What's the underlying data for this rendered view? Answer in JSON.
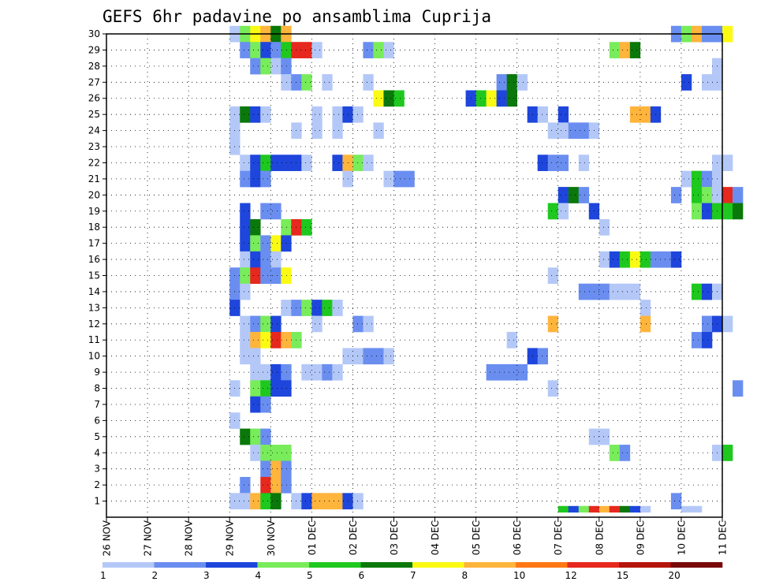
{
  "chart_data": {
    "type": "heatmap",
    "title": "GEFS 6hr padavine po ansamblima Cuprija",
    "xlabel": "",
    "ylabel": "",
    "x_tick_labels": [
      "26 NOV",
      "27 NOV",
      "28 NOV",
      "29 NOV",
      "30 NOV",
      "01 DEC",
      "02 DEC",
      "03 DEC",
      "04 DEC",
      "05 DEC",
      "06 DEC",
      "07 DEC",
      "08 DEC",
      "09 DEC",
      "10 DEC",
      "11 DEC"
    ],
    "x_range_days": [
      0,
      15
    ],
    "y_tick_labels": [
      1,
      2,
      3,
      4,
      5,
      6,
      7,
      8,
      9,
      10,
      11,
      12,
      13,
      14,
      15,
      16,
      17,
      18,
      19,
      20,
      21,
      22,
      23,
      24,
      25,
      26,
      27,
      28,
      29,
      30
    ],
    "y_range": [
      0,
      30
    ],
    "grid": true,
    "colorbar": {
      "placement": "bottom",
      "tick_labels": [
        "1",
        "2",
        "3",
        "4",
        "5",
        "6",
        "7",
        "8",
        "10",
        "12",
        "15",
        "20"
      ],
      "colors": [
        "#b4c8f8",
        "#6a8ef0",
        "#1e46dc",
        "#78ec5a",
        "#1ec81e",
        "#0a780a",
        "#fafa14",
        "#ffb43c",
        "#ff7814",
        "#e6281e",
        "#b4140a",
        "#780a0a"
      ]
    },
    "series_note": "cells: [day_offset_from_26_NOV_00UTC, ensemble_member, precipitation_mm]",
    "cells": [
      [
        3.0,
        30,
        1.5
      ],
      [
        3.25,
        30,
        4.5
      ],
      [
        3.5,
        30,
        7.5
      ],
      [
        3.75,
        30,
        8.5
      ],
      [
        4.0,
        30,
        6.5
      ],
      [
        4.25,
        30,
        8.5
      ],
      [
        13.75,
        30,
        2.5
      ],
      [
        14.0,
        30,
        4.5
      ],
      [
        14.25,
        30,
        8.5
      ],
      [
        14.5,
        30,
        2.5
      ],
      [
        14.75,
        30,
        2.5
      ],
      [
        15.0,
        30,
        7.5
      ],
      [
        3.25,
        29,
        2.5
      ],
      [
        3.5,
        29,
        4.5
      ],
      [
        3.75,
        29,
        3.5
      ],
      [
        4.0,
        29,
        2.5
      ],
      [
        4.25,
        29,
        5.5
      ],
      [
        4.5,
        29,
        13.5
      ],
      [
        4.75,
        29,
        13.5
      ],
      [
        5.0,
        29,
        1.5
      ],
      [
        6.25,
        29,
        2.5
      ],
      [
        6.5,
        29,
        4.5
      ],
      [
        6.75,
        29,
        1.5
      ],
      [
        12.25,
        29,
        4.5
      ],
      [
        12.5,
        29,
        8.5
      ],
      [
        12.75,
        29,
        6.5
      ],
      [
        3.5,
        28,
        2.5
      ],
      [
        3.75,
        28,
        4.5
      ],
      [
        4.0,
        28,
        1.5
      ],
      [
        4.25,
        28,
        2.5
      ],
      [
        14.75,
        28,
        1.5
      ],
      [
        4.25,
        27,
        1.5
      ],
      [
        4.5,
        27,
        2.5
      ],
      [
        4.75,
        27,
        4.5
      ],
      [
        5.25,
        27,
        1.5
      ],
      [
        6.25,
        27,
        1.5
      ],
      [
        9.5,
        27,
        2.5
      ],
      [
        9.75,
        27,
        6.5
      ],
      [
        10.0,
        27,
        1.5
      ],
      [
        14.0,
        27,
        3.5
      ],
      [
        14.5,
        27,
        1.5
      ],
      [
        14.75,
        27,
        1.5
      ],
      [
        6.5,
        26,
        7.5
      ],
      [
        6.75,
        26,
        6.5
      ],
      [
        7.0,
        26,
        5.5
      ],
      [
        8.75,
        26,
        3.5
      ],
      [
        9.0,
        26,
        5.5
      ],
      [
        9.25,
        26,
        7.5
      ],
      [
        9.5,
        26,
        3.5
      ],
      [
        9.75,
        26,
        6.5
      ],
      [
        3.0,
        25,
        1.5
      ],
      [
        3.25,
        25,
        6.5
      ],
      [
        3.5,
        25,
        3.5
      ],
      [
        3.75,
        25,
        1.5
      ],
      [
        5.0,
        25,
        1.5
      ],
      [
        5.5,
        25,
        1.5
      ],
      [
        5.75,
        25,
        3.5
      ],
      [
        6.0,
        25,
        1.5
      ],
      [
        10.25,
        25,
        3.5
      ],
      [
        10.5,
        25,
        1.5
      ],
      [
        11.0,
        25,
        3.5
      ],
      [
        12.75,
        25,
        8.5
      ],
      [
        13.0,
        25,
        8.5
      ],
      [
        13.25,
        25,
        3.5
      ],
      [
        3.0,
        24,
        1.5
      ],
      [
        4.5,
        24,
        1.5
      ],
      [
        5.0,
        24,
        1.5
      ],
      [
        5.5,
        24,
        1.5
      ],
      [
        6.5,
        24,
        1.5
      ],
      [
        10.75,
        24,
        1.5
      ],
      [
        11.0,
        24,
        1.5
      ],
      [
        11.25,
        24,
        2.5
      ],
      [
        11.5,
        24,
        2.5
      ],
      [
        11.75,
        24,
        1.5
      ],
      [
        3.0,
        23,
        1.5
      ],
      [
        3.25,
        22,
        1.5
      ],
      [
        3.5,
        22,
        3.5
      ],
      [
        3.75,
        22,
        5.5
      ],
      [
        4.0,
        22,
        3.5
      ],
      [
        4.25,
        22,
        3.5
      ],
      [
        4.5,
        22,
        3.5
      ],
      [
        4.75,
        22,
        1.5
      ],
      [
        5.5,
        22,
        3.5
      ],
      [
        5.75,
        22,
        8.5
      ],
      [
        6.0,
        22,
        4.5
      ],
      [
        6.25,
        22,
        1.5
      ],
      [
        10.5,
        22,
        3.5
      ],
      [
        10.75,
        22,
        2.5
      ],
      [
        11.0,
        22,
        2.5
      ],
      [
        11.5,
        22,
        1.5
      ],
      [
        14.75,
        22,
        1.5
      ],
      [
        15.0,
        22,
        1.5
      ],
      [
        3.25,
        21,
        2.5
      ],
      [
        3.5,
        21,
        3.5
      ],
      [
        3.75,
        21,
        2.5
      ],
      [
        5.75,
        21,
        1.5
      ],
      [
        6.75,
        21,
        1.5
      ],
      [
        7.0,
        21,
        2.5
      ],
      [
        7.25,
        21,
        2.5
      ],
      [
        14.0,
        21,
        1.5
      ],
      [
        14.25,
        21,
        5.5
      ],
      [
        14.5,
        21,
        2.5
      ],
      [
        14.75,
        21,
        1.5
      ],
      [
        11.0,
        20,
        3.5
      ],
      [
        11.25,
        20,
        6.5
      ],
      [
        11.5,
        20,
        2.5
      ],
      [
        13.75,
        20,
        2.5
      ],
      [
        14.25,
        20,
        5.5
      ],
      [
        14.5,
        20,
        4.5
      ],
      [
        14.75,
        20,
        1.5
      ],
      [
        15.0,
        20,
        13.5
      ],
      [
        15.25,
        20,
        2.5
      ],
      [
        3.25,
        19,
        3.5
      ],
      [
        3.75,
        19,
        2.5
      ],
      [
        4.0,
        19,
        2.5
      ],
      [
        10.75,
        19,
        5.5
      ],
      [
        11.0,
        19,
        1.5
      ],
      [
        11.75,
        19,
        3.5
      ],
      [
        14.25,
        19,
        4.5
      ],
      [
        14.5,
        19,
        3.5
      ],
      [
        14.75,
        19,
        5.5
      ],
      [
        15.0,
        19,
        5.5
      ],
      [
        15.25,
        19,
        6.5
      ],
      [
        3.25,
        18,
        3.5
      ],
      [
        3.5,
        18,
        6.5
      ],
      [
        4.25,
        18,
        4.5
      ],
      [
        4.5,
        18,
        13.5
      ],
      [
        4.75,
        18,
        5.5
      ],
      [
        12.0,
        18,
        1.5
      ],
      [
        3.25,
        17,
        3.5
      ],
      [
        3.5,
        17,
        4.5
      ],
      [
        3.75,
        17,
        2.5
      ],
      [
        4.0,
        17,
        7.5
      ],
      [
        4.25,
        17,
        3.5
      ],
      [
        3.25,
        16,
        1.5
      ],
      [
        3.5,
        16,
        3.5
      ],
      [
        3.75,
        16,
        2.5
      ],
      [
        4.0,
        16,
        1.5
      ],
      [
        12.0,
        16,
        1.5
      ],
      [
        12.25,
        16,
        3.5
      ],
      [
        12.5,
        16,
        5.5
      ],
      [
        12.75,
        16,
        7.5
      ],
      [
        13.0,
        16,
        5.5
      ],
      [
        13.25,
        16,
        2.5
      ],
      [
        13.5,
        16,
        2.5
      ],
      [
        13.75,
        16,
        3.5
      ],
      [
        3.0,
        15,
        2.5
      ],
      [
        3.25,
        15,
        4.5
      ],
      [
        3.5,
        15,
        12.5
      ],
      [
        3.75,
        15,
        2.5
      ],
      [
        4.0,
        15,
        2.5
      ],
      [
        4.25,
        15,
        7.5
      ],
      [
        10.75,
        15,
        1.5
      ],
      [
        3.0,
        14,
        2.5
      ],
      [
        3.25,
        14,
        1.5
      ],
      [
        11.5,
        14,
        2.5
      ],
      [
        11.75,
        14,
        2.5
      ],
      [
        12.0,
        14,
        2.5
      ],
      [
        12.25,
        14,
        1.5
      ],
      [
        12.5,
        14,
        1.5
      ],
      [
        12.75,
        14,
        1.5
      ],
      [
        14.25,
        14,
        5.5
      ],
      [
        14.5,
        14,
        3.5
      ],
      [
        14.75,
        14,
        1.5
      ],
      [
        3.0,
        13,
        3.5
      ],
      [
        4.25,
        13,
        1.5
      ],
      [
        4.5,
        13,
        2.5
      ],
      [
        4.75,
        13,
        4.5
      ],
      [
        5.0,
        13,
        3.5
      ],
      [
        5.25,
        13,
        5.5
      ],
      [
        5.5,
        13,
        1.5
      ],
      [
        13.0,
        13,
        1.5
      ],
      [
        3.25,
        12,
        1.5
      ],
      [
        3.5,
        12,
        2.5
      ],
      [
        3.75,
        12,
        4.5
      ],
      [
        4.0,
        12,
        3.5
      ],
      [
        5.0,
        12,
        1.5
      ],
      [
        6.0,
        12,
        2.5
      ],
      [
        6.25,
        12,
        1.5
      ],
      [
        10.75,
        12,
        8.5
      ],
      [
        13.0,
        12,
        8.5
      ],
      [
        14.5,
        12,
        2.5
      ],
      [
        14.75,
        12,
        3.5
      ],
      [
        15.0,
        12,
        1.5
      ],
      [
        3.25,
        11,
        1.5
      ],
      [
        3.5,
        11,
        8.5
      ],
      [
        3.75,
        11,
        7.5
      ],
      [
        4.0,
        11,
        13.5
      ],
      [
        4.25,
        11,
        8.5
      ],
      [
        4.5,
        11,
        4.5
      ],
      [
        9.75,
        11,
        1.5
      ],
      [
        14.25,
        11,
        2.5
      ],
      [
        14.5,
        11,
        3.5
      ],
      [
        3.25,
        10,
        1.5
      ],
      [
        3.5,
        10,
        1.5
      ],
      [
        5.75,
        10,
        1.5
      ],
      [
        6.0,
        10,
        1.5
      ],
      [
        6.25,
        10,
        2.5
      ],
      [
        6.5,
        10,
        2.5
      ],
      [
        6.75,
        10,
        1.5
      ],
      [
        10.25,
        10,
        3.5
      ],
      [
        10.5,
        10,
        2.5
      ],
      [
        3.5,
        9,
        1.5
      ],
      [
        3.75,
        9,
        1.5
      ],
      [
        4.0,
        9,
        3.5
      ],
      [
        4.25,
        9,
        2.5
      ],
      [
        4.75,
        9,
        1.5
      ],
      [
        5.0,
        9,
        1.5
      ],
      [
        5.25,
        9,
        2.5
      ],
      [
        5.5,
        9,
        1.5
      ],
      [
        9.25,
        9,
        2.5
      ],
      [
        9.5,
        9,
        2.5
      ],
      [
        9.75,
        9,
        2.5
      ],
      [
        10.0,
        9,
        2.5
      ],
      [
        3.0,
        8,
        1.5
      ],
      [
        3.5,
        8,
        4.5
      ],
      [
        3.75,
        8,
        5.5
      ],
      [
        4.0,
        8,
        3.5
      ],
      [
        4.25,
        8,
        3.5
      ],
      [
        10.75,
        8,
        1.5
      ],
      [
        15.25,
        8,
        2.5
      ],
      [
        3.5,
        7,
        3.5
      ],
      [
        3.75,
        7,
        2.5
      ],
      [
        3.0,
        6,
        1.5
      ],
      [
        3.25,
        5,
        6.5
      ],
      [
        3.5,
        5,
        4.5
      ],
      [
        3.75,
        5,
        2.5
      ],
      [
        11.75,
        5,
        1.5
      ],
      [
        12.0,
        5,
        1.5
      ],
      [
        3.5,
        4,
        1.5
      ],
      [
        3.75,
        4,
        4.5
      ],
      [
        4.0,
        4,
        4.5
      ],
      [
        4.25,
        4,
        4.5
      ],
      [
        12.25,
        4,
        4.5
      ],
      [
        12.5,
        4,
        2.5
      ],
      [
        14.75,
        4,
        1.5
      ],
      [
        15.0,
        4,
        5.5
      ],
      [
        3.75,
        3,
        2.5
      ],
      [
        4.0,
        3,
        8.5
      ],
      [
        4.25,
        3,
        2.5
      ],
      [
        3.25,
        2,
        2.5
      ],
      [
        3.75,
        2,
        13.5
      ],
      [
        4.0,
        2,
        8.5
      ],
      [
        4.25,
        2,
        2.5
      ],
      [
        3.0,
        1,
        1.5
      ],
      [
        3.25,
        1,
        1.5
      ],
      [
        3.5,
        1,
        8.5
      ],
      [
        3.75,
        1,
        5.5
      ],
      [
        4.0,
        1,
        6.5
      ],
      [
        4.5,
        1,
        1.5
      ],
      [
        4.75,
        1,
        3.5
      ],
      [
        5.0,
        1,
        8.5
      ],
      [
        5.25,
        1,
        8.5
      ],
      [
        5.5,
        1,
        8.5
      ],
      [
        5.75,
        1,
        3.5
      ],
      [
        6.0,
        1,
        1.5
      ],
      [
        13.75,
        1,
        2.5
      ],
      [
        11.0,
        0.5,
        5.5
      ],
      [
        11.25,
        0.5,
        3.5
      ],
      [
        11.5,
        0.5,
        4.5
      ],
      [
        11.75,
        0.5,
        13.5
      ],
      [
        12.0,
        0.5,
        8.5
      ],
      [
        12.25,
        0.5,
        13.5
      ],
      [
        12.5,
        0.5,
        6.5
      ],
      [
        12.75,
        0.5,
        3.5
      ],
      [
        13.0,
        0.5,
        1.5
      ],
      [
        14.0,
        0.5,
        1.5
      ],
      [
        14.25,
        0.5,
        1.5
      ]
    ]
  }
}
